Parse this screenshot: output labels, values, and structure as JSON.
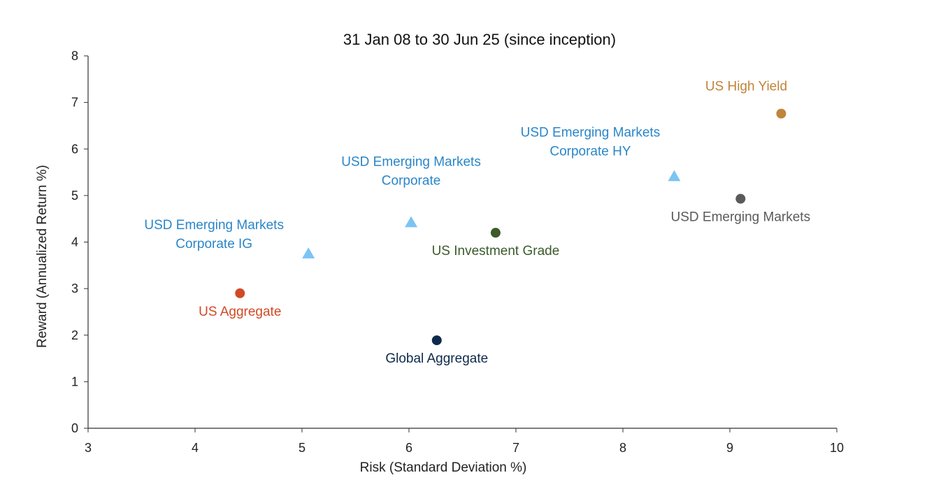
{
  "chart_data": {
    "type": "scatter",
    "title": "31 Jan 08 to 30 Jun 25 (since inception)",
    "xlabel": "Risk (Standard Deviation %)",
    "ylabel": "Reward (Annualized Return %)",
    "xlim": [
      3,
      10
    ],
    "ylim": [
      0,
      8
    ],
    "xticks": [
      3,
      4,
      5,
      6,
      7,
      8,
      9,
      10
    ],
    "yticks": [
      0,
      1,
      2,
      3,
      4,
      5,
      6,
      7,
      8
    ],
    "grid": false,
    "legend": "none",
    "points": [
      {
        "label_lines": [
          "US High Yield"
        ],
        "x": 9.48,
        "y": 6.76,
        "marker": "circle",
        "color": "#C0843A",
        "label_position": "above-left"
      },
      {
        "label_lines": [
          "USD Emerging Markets",
          "Corporate HY"
        ],
        "x": 8.48,
        "y": 5.41,
        "marker": "triangle",
        "color": "#7CC4F4",
        "label_color": "#2A86C8",
        "label_position": "above-left"
      },
      {
        "label_lines": [
          "USD Emerging Markets"
        ],
        "x": 9.1,
        "y": 4.93,
        "marker": "circle",
        "color": "#5A5A5A",
        "label_position": "below"
      },
      {
        "label_lines": [
          "USD Emerging Markets",
          "Corporate"
        ],
        "x": 6.02,
        "y": 4.42,
        "marker": "triangle",
        "color": "#7CC4F4",
        "label_color": "#2A86C8",
        "label_position": "above"
      },
      {
        "label_lines": [
          "US Investment Grade"
        ],
        "x": 6.81,
        "y": 4.2,
        "marker": "circle",
        "color": "#3C5A2A",
        "label_position": "below"
      },
      {
        "label_lines": [
          "USD Emerging Markets",
          "Corporate IG"
        ],
        "x": 5.06,
        "y": 3.75,
        "marker": "triangle",
        "color": "#7CC4F4",
        "label_color": "#2A86C8",
        "label_position": "left"
      },
      {
        "label_lines": [
          "US Aggregate"
        ],
        "x": 4.42,
        "y": 2.9,
        "marker": "circle",
        "color": "#D04A25",
        "label_position": "below"
      },
      {
        "label_lines": [
          "Global Aggregate"
        ],
        "x": 6.26,
        "y": 1.89,
        "marker": "circle",
        "color": "#0D2A4A",
        "label_position": "below"
      }
    ]
  }
}
